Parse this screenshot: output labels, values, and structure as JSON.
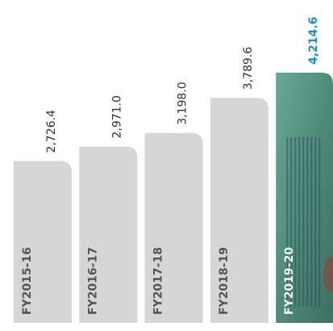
{
  "chart_data": {
    "type": "bar",
    "categories": [
      "FY2015-16",
      "FY2016-17",
      "FY2017-18",
      "FY2018-19",
      "FY2019-20"
    ],
    "values": [
      2726.4,
      2971.0,
      3198.0,
      3789.6,
      4214.6
    ],
    "value_labels": [
      "2,726.4",
      "2,971.0",
      "3,198.0",
      "3,789.6",
      "4,214.6"
    ],
    "colors": [
      "#d6d6d6",
      "#d6d6d6",
      "#d6d6d6",
      "#d6d6d6",
      "#5f9e8c"
    ]
  }
}
